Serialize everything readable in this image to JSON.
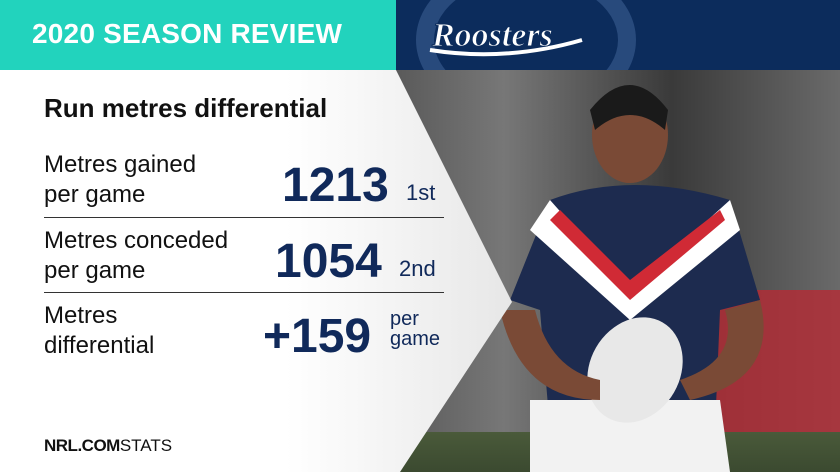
{
  "header": {
    "title": "2020 SEASON REVIEW",
    "team_logo_text": "Roosters"
  },
  "colors": {
    "teal": "#22d3bd",
    "navy": "#0c2c5c",
    "stat_text": "#10295a"
  },
  "section_title": "Run metres differential",
  "stats": [
    {
      "label_line1": "Metres gained",
      "label_line2": "per game",
      "value": "1213",
      "rank": "1st"
    },
    {
      "label_line1": "Metres conceded",
      "label_line2": "per game",
      "value": "1054",
      "rank": "2nd"
    },
    {
      "label_line1": "Metres",
      "label_line2": "differential",
      "value": "+159",
      "rank_line1": "per",
      "rank_line2": "game"
    }
  ],
  "footer": {
    "brand": "NRL.COM",
    "suffix": "STATS"
  }
}
